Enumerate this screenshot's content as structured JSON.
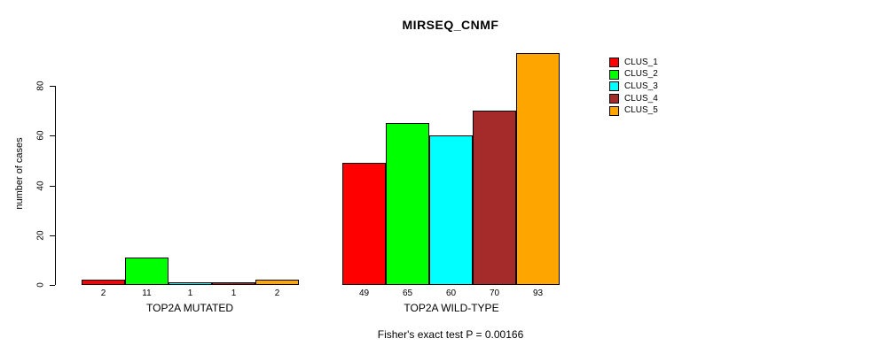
{
  "title": "MIRSEQ_CNMF",
  "chart_data": {
    "type": "bar",
    "title": "MIRSEQ_CNMF",
    "ylabel": "number of cases",
    "xlabel": "",
    "ylim": [
      0,
      95
    ],
    "yticks": [
      0,
      20,
      40,
      60,
      80
    ],
    "grid": false,
    "legend_position": "top-right-inside",
    "categories": [
      "TOP2A MUTATED",
      "TOP2A WILD-TYPE"
    ],
    "series": [
      {
        "name": "CLUS_1",
        "color": "#ff0000",
        "values": [
          2,
          49
        ]
      },
      {
        "name": "CLUS_2",
        "color": "#00ff00",
        "values": [
          11,
          65
        ]
      },
      {
        "name": "CLUS_3",
        "color": "#00ffff",
        "values": [
          1,
          60
        ]
      },
      {
        "name": "CLUS_4",
        "color": "#a52a2a",
        "values": [
          1,
          70
        ]
      },
      {
        "name": "CLUS_5",
        "color": "#ffa500",
        "values": [
          2,
          93
        ]
      }
    ],
    "bar_value_labels": {
      "TOP2A MUTATED": [
        2,
        11,
        1,
        1,
        2
      ],
      "TOP2A WILD-TYPE": [
        49,
        65,
        60,
        70,
        93
      ]
    },
    "annotation": "Fisher's exact test P = 0.00166"
  }
}
